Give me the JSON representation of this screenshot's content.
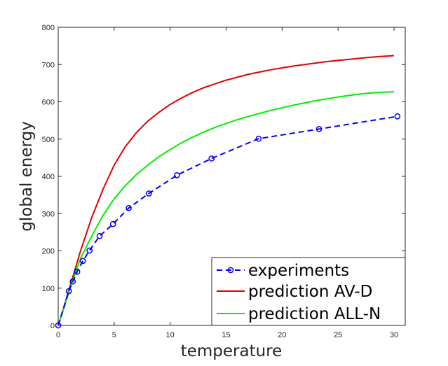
{
  "chart_data": {
    "type": "line",
    "title": "",
    "xlabel": "temperature",
    "ylabel": "global energy",
    "xlim": [
      0,
      31
    ],
    "ylim": [
      0,
      800
    ],
    "xticks": [
      0,
      5,
      10,
      15,
      20,
      25,
      30
    ],
    "yticks": [
      0,
      100,
      200,
      300,
      400,
      500,
      600,
      700,
      800
    ],
    "grid": false,
    "legend_position": "bottom-right",
    "series": [
      {
        "name": "experiments",
        "color": "#0000ff",
        "style": "dashed",
        "marker": "circle",
        "x": [
          0,
          0.95,
          1.3,
          1.7,
          2.2,
          2.8,
          3.7,
          4.9,
          6.3,
          8.1,
          10.6,
          13.7,
          17.9,
          23.3,
          30.3
        ],
        "y": [
          0,
          92,
          118,
          144,
          173,
          201,
          240,
          272,
          315,
          354,
          403,
          448,
          501,
          527,
          561
        ]
      },
      {
        "name": "prediction AV-D",
        "color": "#e00000",
        "style": "solid",
        "marker": "none",
        "x": [
          0,
          0.5,
          1,
          1.5,
          2,
          3,
          4,
          5,
          6,
          7,
          8,
          9,
          10,
          11,
          12,
          13,
          14,
          15,
          16,
          17,
          18,
          19,
          20,
          21,
          22,
          23,
          24,
          25,
          26,
          27,
          28,
          29,
          30
        ],
        "y": [
          0,
          48,
          100,
          150,
          200,
          290,
          365,
          430,
          480,
          518,
          548,
          572,
          593,
          610,
          625,
          638,
          648,
          658,
          666,
          674,
          680,
          686,
          691,
          696,
          700,
          704,
          708,
          711,
          714,
          717,
          720,
          722,
          724
        ]
      },
      {
        "name": "prediction ALL-N",
        "color": "#00f000",
        "style": "solid",
        "marker": "none",
        "x": [
          0,
          0.5,
          1,
          1.5,
          2,
          3,
          4,
          5,
          6,
          7,
          8,
          9,
          10,
          11,
          12,
          13,
          14,
          15,
          16,
          17,
          18,
          19,
          20,
          21,
          22,
          23,
          24,
          25,
          26,
          27,
          28,
          29,
          30
        ],
        "y": [
          0,
          45,
          95,
          138,
          180,
          240,
          295,
          340,
          375,
          405,
          430,
          453,
          472,
          490,
          505,
          519,
          531,
          542,
          552,
          561,
          569,
          577,
          584,
          591,
          597,
          603,
          608,
          613,
          617,
          621,
          624,
          626,
          627
        ]
      }
    ]
  }
}
